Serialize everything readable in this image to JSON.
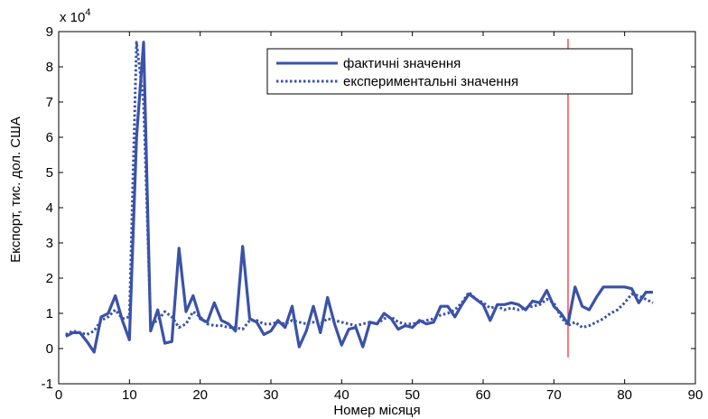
{
  "chart_data": {
    "type": "line",
    "title": "",
    "xlabel": "Номер місяця",
    "ylabel": "Експорт, тис. дол. США",
    "y_multiplier_label": "x 10",
    "y_multiplier_exponent": "4",
    "xlim": [
      0,
      90
    ],
    "ylim": [
      -1,
      9
    ],
    "x_ticks": [
      0,
      10,
      20,
      30,
      40,
      50,
      60,
      70,
      80,
      90
    ],
    "y_ticks": [
      -1,
      0,
      1,
      2,
      3,
      4,
      5,
      6,
      7,
      8,
      9
    ],
    "grid": false,
    "legend_position": "top-right",
    "vertical_marker_x": 72,
    "series": [
      {
        "name": "фактичні значення",
        "style": "solid",
        "color": "#3a52a8",
        "x": [
          1,
          2,
          3,
          4,
          5,
          6,
          7,
          8,
          9,
          10,
          11,
          12,
          13,
          14,
          15,
          16,
          17,
          18,
          19,
          20,
          21,
          22,
          23,
          24,
          25,
          26,
          27,
          28,
          29,
          30,
          31,
          32,
          33,
          34,
          35,
          36,
          37,
          38,
          39,
          40,
          41,
          42,
          43,
          44,
          45,
          46,
          47,
          48,
          49,
          50,
          51,
          52,
          53,
          54,
          55,
          56,
          57,
          58,
          59,
          60,
          61,
          62,
          63,
          64,
          65,
          66,
          67,
          68,
          69,
          70,
          71,
          72,
          73,
          74,
          75,
          76,
          77,
          78,
          79,
          80,
          81,
          82,
          83,
          84
        ],
        "y": [
          0.35,
          0.45,
          0.45,
          0.2,
          -0.1,
          0.9,
          1.0,
          1.5,
          0.8,
          0.25,
          6.0,
          8.7,
          0.5,
          1.1,
          0.15,
          0.2,
          2.85,
          1.05,
          1.5,
          0.85,
          0.75,
          1.3,
          0.8,
          0.7,
          0.5,
          2.9,
          0.85,
          0.75,
          0.4,
          0.5,
          0.8,
          0.6,
          1.2,
          0.05,
          0.5,
          1.2,
          0.45,
          1.45,
          0.7,
          0.1,
          0.55,
          0.6,
          0.05,
          0.75,
          0.7,
          1.0,
          0.85,
          0.55,
          0.65,
          0.6,
          0.8,
          0.7,
          0.75,
          1.2,
          1.2,
          0.9,
          1.25,
          1.55,
          1.4,
          1.25,
          0.8,
          1.25,
          1.25,
          1.3,
          1.25,
          1.1,
          1.35,
          1.3,
          1.65,
          1.2,
          1.0,
          0.7,
          1.75,
          1.2,
          1.1,
          1.45,
          1.75,
          1.75,
          1.75,
          1.75,
          1.7,
          1.3,
          1.6,
          1.6
        ]
      },
      {
        "name": "експериментальні значення",
        "style": "dotted",
        "color": "#3a52a8",
        "x": [
          1,
          2,
          3,
          4,
          5,
          6,
          7,
          8,
          9,
          10,
          11,
          12,
          13,
          14,
          15,
          16,
          17,
          18,
          19,
          20,
          21,
          22,
          23,
          24,
          25,
          26,
          27,
          28,
          29,
          30,
          31,
          32,
          33,
          34,
          35,
          36,
          37,
          38,
          39,
          40,
          41,
          42,
          43,
          44,
          45,
          46,
          47,
          48,
          49,
          50,
          51,
          52,
          53,
          54,
          55,
          56,
          57,
          58,
          59,
          60,
          61,
          62,
          63,
          64,
          65,
          66,
          67,
          68,
          69,
          70,
          71,
          72,
          73,
          74,
          75,
          76,
          77,
          78,
          79,
          80,
          81,
          82,
          83,
          84
        ],
        "y": [
          0.4,
          0.5,
          0.45,
          0.4,
          0.5,
          0.8,
          0.9,
          1.1,
          0.85,
          0.9,
          8.7,
          7.0,
          0.7,
          0.8,
          1.05,
          0.9,
          0.6,
          0.7,
          1.05,
          0.9,
          0.7,
          0.65,
          0.65,
          0.6,
          0.6,
          0.55,
          0.8,
          0.8,
          0.7,
          0.7,
          0.75,
          0.7,
          0.8,
          0.75,
          0.7,
          0.75,
          0.7,
          0.85,
          0.8,
          0.75,
          0.7,
          0.65,
          0.7,
          0.75,
          0.7,
          0.85,
          0.9,
          0.75,
          0.7,
          0.7,
          0.75,
          0.8,
          0.85,
          0.95,
          1.0,
          1.1,
          1.3,
          1.6,
          1.4,
          1.3,
          1.15,
          1.2,
          1.1,
          1.15,
          1.1,
          1.15,
          1.2,
          1.25,
          1.4,
          1.3,
          0.9,
          0.65,
          0.75,
          0.6,
          0.65,
          0.75,
          0.85,
          1.0,
          1.1,
          1.3,
          1.55,
          1.5,
          1.4,
          1.3
        ]
      }
    ]
  }
}
